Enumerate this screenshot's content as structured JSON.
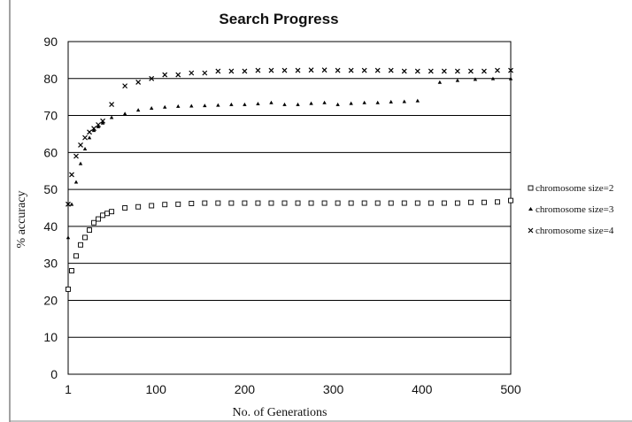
{
  "chart_data": {
    "type": "scatter",
    "title": "Search Progress",
    "xlabel": "No. of Generations",
    "ylabel": "% accuracy",
    "xlim": [
      1,
      500
    ],
    "ylim": [
      0,
      90
    ],
    "x_ticks": [
      "1",
      "100",
      "200",
      "300",
      "400",
      "500"
    ],
    "y_ticks": [
      "0",
      "10",
      "20",
      "30",
      "40",
      "50",
      "60",
      "70",
      "80",
      "90"
    ],
    "grid": "horizontal",
    "legend_position": "right",
    "series": [
      {
        "name": "chromosome size=2",
        "marker": "square",
        "x": [
          1,
          5,
          10,
          15,
          20,
          25,
          30,
          35,
          40,
          45,
          50,
          65,
          80,
          95,
          110,
          125,
          140,
          155,
          170,
          185,
          200,
          215,
          230,
          245,
          260,
          275,
          290,
          305,
          320,
          335,
          350,
          365,
          380,
          395,
          410,
          425,
          440,
          455,
          470,
          485,
          500
        ],
        "y": [
          23,
          28,
          32,
          35,
          37,
          39,
          41,
          42,
          43,
          43.5,
          44,
          45,
          45.3,
          45.6,
          45.9,
          46,
          46.2,
          46.3,
          46.3,
          46.3,
          46.3,
          46.3,
          46.3,
          46.3,
          46.3,
          46.3,
          46.3,
          46.3,
          46.3,
          46.3,
          46.3,
          46.3,
          46.3,
          46.3,
          46.3,
          46.3,
          46.3,
          46.5,
          46.5,
          46.6,
          47
        ]
      },
      {
        "name": "chromosome size=3",
        "marker": "triangle",
        "x": [
          1,
          5,
          10,
          15,
          20,
          25,
          30,
          35,
          40,
          50,
          65,
          80,
          95,
          110,
          125,
          140,
          155,
          170,
          185,
          200,
          215,
          230,
          245,
          260,
          275,
          290,
          305,
          320,
          335,
          350,
          365,
          380,
          395,
          420,
          440,
          460,
          480,
          500
        ],
        "y": [
          37,
          46,
          52,
          57,
          61,
          64,
          66,
          67,
          68,
          69.5,
          70.5,
          71.5,
          72,
          72.3,
          72.5,
          72.6,
          72.7,
          72.8,
          73,
          73,
          73.2,
          73.5,
          73,
          73,
          73.3,
          73.5,
          73,
          73.3,
          73.5,
          73.5,
          73.7,
          73.8,
          74,
          79,
          79.5,
          79.8,
          80,
          80
        ]
      },
      {
        "name": "chromosome size=4",
        "marker": "x",
        "x": [
          1,
          5,
          10,
          15,
          20,
          25,
          30,
          35,
          40,
          50,
          65,
          80,
          95,
          110,
          125,
          140,
          155,
          170,
          185,
          200,
          215,
          230,
          245,
          260,
          275,
          290,
          305,
          320,
          335,
          350,
          365,
          380,
          395,
          410,
          425,
          440,
          455,
          470,
          485,
          500
        ],
        "y": [
          46,
          54,
          59,
          62,
          64,
          65.5,
          66.5,
          67.5,
          68.5,
          73,
          78,
          79,
          80,
          81,
          81,
          81.5,
          81.5,
          82,
          82,
          82,
          82.2,
          82.2,
          82.2,
          82.2,
          82.3,
          82.3,
          82.2,
          82.2,
          82.2,
          82.2,
          82.2,
          82,
          82,
          82,
          82,
          82,
          82,
          82,
          82.2,
          82.2
        ]
      }
    ]
  }
}
